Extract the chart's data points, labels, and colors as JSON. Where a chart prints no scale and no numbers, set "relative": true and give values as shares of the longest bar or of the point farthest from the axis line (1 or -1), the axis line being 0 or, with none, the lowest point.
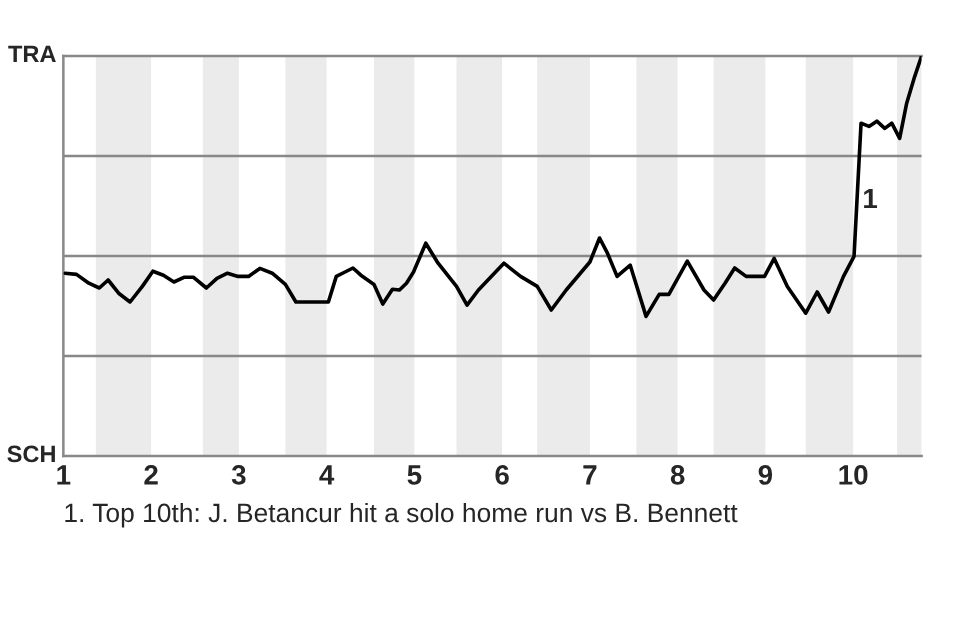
{
  "chart_data": {
    "type": "line",
    "relative": true,
    "xlim": [
      1,
      10.78
    ],
    "xticks": [
      1,
      2,
      3,
      4,
      5,
      6,
      7,
      8,
      9,
      10
    ],
    "marker": "none",
    "line_style": "solid",
    "ref_lines": [
      {
        "axis": "y",
        "value": 0.25,
        "color": "#888888"
      },
      {
        "axis": "y",
        "value": 0.5,
        "color": "#888888"
      },
      {
        "axis": "y",
        "value": 0.75,
        "color": "#888888"
      }
    ],
    "bands": [
      {
        "axis": "x",
        "from": 1.37,
        "to": 2,
        "color": "#ebebeb"
      },
      {
        "axis": "x",
        "from": 2.59,
        "to": 3,
        "color": "#ebebeb"
      },
      {
        "axis": "x",
        "from": 3.53,
        "to": 4,
        "color": "#ebebeb"
      },
      {
        "axis": "x",
        "from": 4.54,
        "to": 5,
        "color": "#ebebeb"
      },
      {
        "axis": "x",
        "from": 5.48,
        "to": 6,
        "color": "#ebebeb"
      },
      {
        "axis": "x",
        "from": 6.4,
        "to": 7,
        "color": "#ebebeb"
      },
      {
        "axis": "x",
        "from": 7.53,
        "to": 8,
        "color": "#ebebeb"
      },
      {
        "axis": "x",
        "from": 8.41,
        "to": 9,
        "color": "#ebebeb"
      },
      {
        "axis": "x",
        "from": 9.46,
        "to": 10,
        "color": "#ebebeb"
      },
      {
        "axis": "x",
        "from": 10.5,
        "to": 10.78,
        "color": "#ebebeb"
      }
    ],
    "series": [
      {
        "color": "#000000",
        "x": [
          1.02,
          1.15,
          1.29,
          1.41,
          1.51,
          1.63,
          1.76,
          1.9,
          2.02,
          2.14,
          2.26,
          2.38,
          2.48,
          2.63,
          2.75,
          2.87,
          2.99,
          3.11,
          3.24,
          3.38,
          3.53,
          3.65,
          4.02,
          4.11,
          4.21,
          4.3,
          4.39,
          4.54,
          4.64,
          4.75,
          4.83,
          4.91,
          4.99,
          5.13,
          5.27,
          5.48,
          5.6,
          5.73,
          6.02,
          6.21,
          6.4,
          6.56,
          6.73,
          7.0,
          7.11,
          7.2,
          7.31,
          7.46,
          7.64,
          7.79,
          7.9,
          8.11,
          8.3,
          8.41,
          8.54,
          8.65,
          8.78,
          8.99,
          9.1,
          9.25,
          9.46,
          9.59,
          9.72,
          9.89,
          10.01,
          10.09,
          10.18,
          10.27,
          10.36,
          10.44,
          10.53,
          10.61,
          10.7,
          10.78
        ],
        "values": [
          0.457,
          0.454,
          0.432,
          0.42,
          0.44,
          0.407,
          0.385,
          0.424,
          0.462,
          0.452,
          0.435,
          0.447,
          0.447,
          0.42,
          0.444,
          0.457,
          0.449,
          0.449,
          0.469,
          0.457,
          0.429,
          0.385,
          0.385,
          0.449,
          0.46,
          0.47,
          0.452,
          0.429,
          0.38,
          0.417,
          0.415,
          0.432,
          0.46,
          0.532,
          0.482,
          0.424,
          0.377,
          0.415,
          0.482,
          0.449,
          0.424,
          0.365,
          0.415,
          0.485,
          0.545,
          0.507,
          0.449,
          0.477,
          0.349,
          0.404,
          0.404,
          0.487,
          0.415,
          0.39,
          0.432,
          0.47,
          0.449,
          0.449,
          0.494,
          0.424,
          0.357,
          0.41,
          0.36,
          0.449,
          0.499,
          0.832,
          0.824,
          0.837,
          0.819,
          0.832,
          0.794,
          0.882,
          0.948,
          1.0
        ]
      }
    ],
    "annotations": [
      "TRA",
      "SCH",
      {
        "text": "1",
        "x": 10.01,
        "y": 0.499
      },
      "1. Top 10th: J. Betancur hit a solo home run vs B. Bennett"
    ]
  }
}
